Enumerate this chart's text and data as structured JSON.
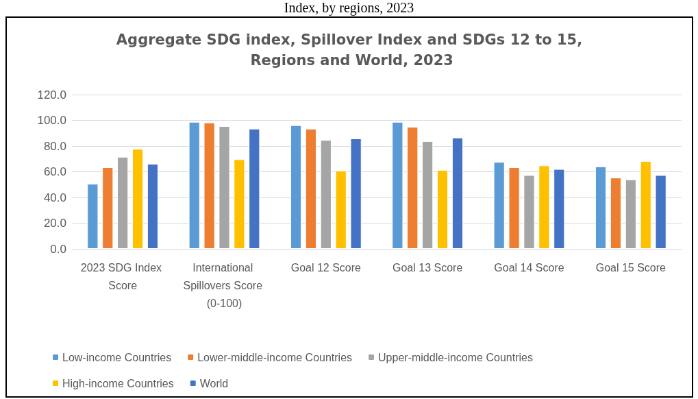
{
  "chart_data": {
    "type": "bar",
    "title": "Aggregate SDG index, Spillover Index and SDGs 12 to 15, Regions and World, 2023",
    "annotations": [
      "Index, by regions, 2023"
    ],
    "categories": [
      "2023 SDG Index Score",
      "International Spillovers Score (0-100)",
      "Goal 12 Score",
      "Goal 13 Score",
      "Goal 14 Score",
      "Goal 15 Score"
    ],
    "series": [
      {
        "name": "Low-income Countries",
        "color": "#5b9bd5",
        "values": [
          50.6,
          98.8,
          96.2,
          98.8,
          67.6,
          64.1
        ]
      },
      {
        "name": "Lower-middle-income Countries",
        "color": "#ed7d31",
        "values": [
          63.5,
          98.3,
          93.5,
          94.9,
          63.5,
          55.4
        ]
      },
      {
        "name": "Upper-middle-income Countries",
        "color": "#a5a5a5",
        "values": [
          71.6,
          95.5,
          84.7,
          83.8,
          57.4,
          54.0
        ]
      },
      {
        "name": "High-income Countries",
        "color": "#ffc000",
        "values": [
          77.8,
          69.7,
          60.9,
          61.4,
          64.9,
          68.3
        ]
      },
      {
        "name": "World",
        "color": "#4472c4",
        "values": [
          66.2,
          93.5,
          85.9,
          86.6,
          62.1,
          57.4
        ]
      }
    ],
    "ylim": [
      0,
      120
    ],
    "yticks": [
      {
        "value": 0,
        "label": "0.0"
      },
      {
        "value": 20,
        "label": "20.0"
      },
      {
        "value": 40,
        "label": "40.0"
      },
      {
        "value": 60,
        "label": "60.0"
      },
      {
        "value": 80,
        "label": "80.0"
      },
      {
        "value": 100,
        "label": "100.0"
      },
      {
        "value": 120,
        "label": "120.0"
      }
    ],
    "grid": "y",
    "legend": "bottom"
  }
}
